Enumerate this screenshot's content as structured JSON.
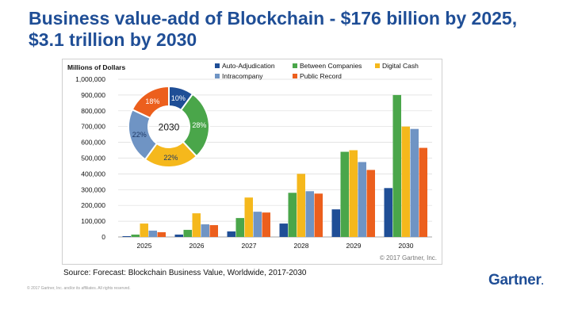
{
  "slide": {
    "title_line1": "Business value-add of Blockchain - $176 billion by 2025,",
    "title_line2": "$3.1 trillion by 2030",
    "source": "Source: Forecast: Blockchain Business Value, Worldwide, 2017-2030",
    "footer": "© 2017 Gartner, Inc. and/or its affiliates. All rights reserved.",
    "logo_text": "Gartner",
    "copyright": "© 2017 Gartner, Inc."
  },
  "chart_data": [
    {
      "type": "bar",
      "ylabel": "Millions of Dollars",
      "ylim": [
        0,
        1000000
      ],
      "yticks": [
        "0",
        "100,000",
        "200,000",
        "300,000",
        "400,000",
        "500,000",
        "600,000",
        "700,000",
        "800,000",
        "900,000",
        "1,000,000"
      ],
      "categories": [
        "2025",
        "2026",
        "2027",
        "2028",
        "2029",
        "2030"
      ],
      "grid": true,
      "legend_position": "top-right",
      "series": [
        {
          "name": "Auto-Adjudication",
          "color": "#1f4e96",
          "values": [
            5000,
            15000,
            35000,
            85000,
            175000,
            310000
          ]
        },
        {
          "name": "Between Companies",
          "color": "#4aa64a",
          "values": [
            15000,
            45000,
            120000,
            280000,
            540000,
            900000
          ]
        },
        {
          "name": "Digital Cash",
          "color": "#f5b81c",
          "values": [
            85000,
            150000,
            250000,
            400000,
            550000,
            700000
          ]
        },
        {
          "name": "Intracompany",
          "color": "#6f94c4",
          "values": [
            40000,
            80000,
            160000,
            290000,
            475000,
            685000
          ]
        },
        {
          "name": "Public Record",
          "color": "#ec5f1d",
          "values": [
            30000,
            75000,
            155000,
            275000,
            425000,
            565000
          ]
        }
      ]
    },
    {
      "type": "pie",
      "center_label": "2030",
      "slices": [
        {
          "name": "Auto-Adjudication",
          "label": "10%",
          "value": 10,
          "color": "#1f4e96"
        },
        {
          "name": "Between Companies",
          "label": "28%",
          "value": 28,
          "color": "#4aa64a"
        },
        {
          "name": "Digital Cash",
          "label": "22%",
          "value": 22,
          "color": "#f5b81c"
        },
        {
          "name": "Intracompany",
          "label": "22%",
          "value": 22,
          "color": "#6f94c4"
        },
        {
          "name": "Public Record",
          "label": "18%",
          "value": 18,
          "color": "#ec5f1d"
        }
      ]
    }
  ]
}
